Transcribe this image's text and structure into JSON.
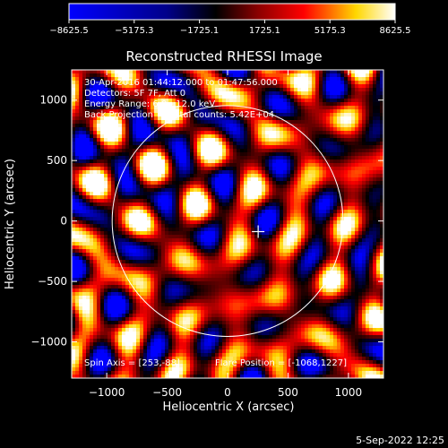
{
  "chart_data": {
    "type": "heatmap",
    "title": "Reconstructed RHESSI Image",
    "xlabel": "Heliocentric X (arcsec)",
    "ylabel": "Heliocentric Y (arcsec)",
    "xlim": [
      -1290,
      1290
    ],
    "ylim": [
      -1300,
      1250
    ],
    "x_ticks": [
      -1000,
      -500,
      0,
      500,
      1000
    ],
    "y_ticks": [
      -1000,
      -500,
      0,
      500,
      1000
    ],
    "x_tick_labels": [
      "−1000",
      "−500",
      "0",
      "500",
      "1000"
    ],
    "y_tick_labels": [
      "−1000",
      "−500",
      "0",
      "500",
      "1000"
    ],
    "colorbar": {
      "min": -8625.5,
      "max": 8625.5,
      "ticks": [
        -8625.5,
        -5175.3,
        -1725.1,
        1725.1,
        5175.3,
        8625.5
      ],
      "tick_labels": [
        "−8625.5",
        "−5175.3",
        "−1725.1",
        "1725.1",
        "5175.3",
        "8625.5"
      ],
      "colormap": [
        "#0000ff",
        "#000000",
        "#8b0000",
        "#ff0000",
        "#ffd700",
        "#ffffff"
      ]
    },
    "solar_disk": {
      "center": [
        0,
        0
      ],
      "radius_arcsec": 955,
      "color": "#ffffff"
    },
    "spin_axis": [
      253,
      -88
    ],
    "flare_position": [
      -1068,
      1227
    ],
    "grid": false
  },
  "annotations": {
    "time_range": "30-Apr-2016 01:44:12.000 to 01:47:56.000",
    "detectors": "Detectors: 5F 7F, Att 0",
    "energy_range": "Energy Range: 6.0 - 12.0 keV",
    "projection": "Back Projection      Total counts: 5.42E+04",
    "spin_axis_label": "Spin Axis = [253,-88]",
    "flare_position_label": "Flare Position = [-1068,1227]"
  },
  "footer": {
    "date": "5-Sep-2022 12:25"
  }
}
